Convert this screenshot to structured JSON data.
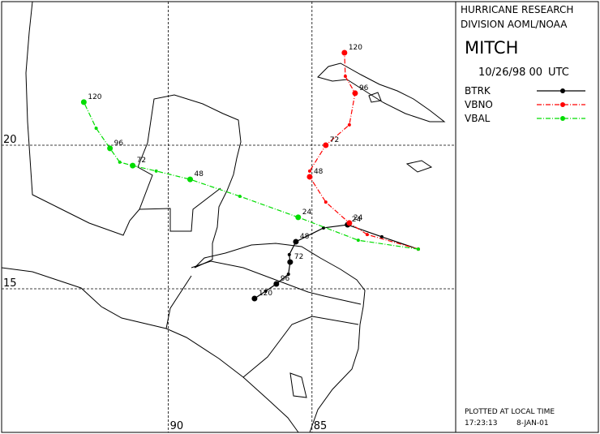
{
  "chart_data": {
    "type": "track",
    "header": [
      "HURRICANE RESEARCH",
      "DIVISION AOML/NOAA"
    ],
    "title": "MITCH",
    "date": "10/26/98 00",
    "time_zone": "UTC",
    "footer": {
      "note": "PLOTTED AT LOCAL TIME",
      "time": "17:23:13",
      "date": "8-JAN-01"
    },
    "xlim": [
      -95.8,
      -80
    ],
    "ylim": [
      10,
      25
    ],
    "xticks": [
      {
        "value": -90,
        "label": "90"
      },
      {
        "value": -85,
        "label": "85"
      }
    ],
    "yticks": [
      15,
      20
    ],
    "grid": true,
    "labeled_hours": [
      24,
      48,
      72,
      96,
      120
    ],
    "series": [
      {
        "name": "BTRK",
        "color": "#000000",
        "line_style": "solid",
        "x": [
          -81.3,
          -82.57,
          -83.76,
          -84.6,
          -85.56,
          -85.79,
          -85.76,
          -85.82,
          -86.24,
          -86.61,
          -87.0
        ],
        "values": [
          16.38,
          16.81,
          17.23,
          17.12,
          16.64,
          16.19,
          15.93,
          15.51,
          15.17,
          14.92,
          14.66
        ]
      },
      {
        "name": "VBNO",
        "color": "#ff0000",
        "line_style": "dashdot",
        "x": [
          -81.3,
          -83.08,
          -83.7,
          -84.52,
          -85.08,
          -85.08,
          -84.52,
          -83.7,
          -83.5,
          -83.84,
          -83.87
        ],
        "values": [
          16.38,
          16.89,
          17.29,
          18.02,
          18.9,
          19.1,
          20.0,
          20.71,
          21.81,
          22.4,
          23.22
        ]
      },
      {
        "name": "VBAL",
        "color": "#00dd00",
        "line_style": "dashdot",
        "x": [
          -81.3,
          -83.39,
          -85.48,
          -87.51,
          -89.24,
          -90.42,
          -91.24,
          -91.69,
          -92.03,
          -92.51,
          -92.94
        ],
        "values": [
          16.38,
          16.69,
          17.49,
          18.22,
          18.81,
          19.1,
          19.29,
          19.41,
          19.89,
          20.59,
          21.5
        ]
      }
    ]
  }
}
